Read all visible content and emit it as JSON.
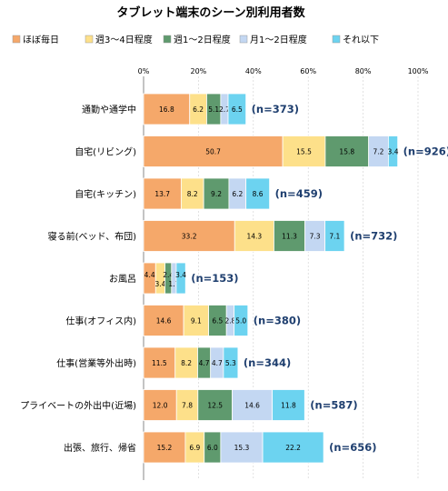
{
  "chart_data": {
    "type": "bar",
    "orientation": "horizontal",
    "stacked": true,
    "title": "タブレット端末のシーン別利用者数",
    "legend_position": "top",
    "series": [
      {
        "name": "ほぼ毎日",
        "color": "#f5a86a"
      },
      {
        "name": "週3～4日程度",
        "color": "#fde08a"
      },
      {
        "name": "週1～2日程度",
        "color": "#5f9a6e"
      },
      {
        "name": "月1～2日程度",
        "color": "#c3d7f2"
      },
      {
        "name": "それ以下",
        "color": "#6cd3f0"
      }
    ],
    "x_ticks": [
      "0%",
      "20%",
      "40%",
      "60%",
      "80%",
      "100%"
    ],
    "xlim": [
      0,
      100
    ],
    "categories": [
      {
        "label": "通勤や通学中",
        "n": "(n=373)",
        "values": [
          16.8,
          6.2,
          5.1,
          2.7,
          6.5
        ],
        "labels": [
          "16.8",
          "6.2",
          "5.1",
          "2.7",
          "6.5"
        ]
      },
      {
        "label": "自宅(リビング)",
        "n": "(n=926)",
        "values": [
          50.7,
          15.5,
          15.8,
          7.2,
          3.4
        ],
        "labels": [
          "50.7",
          "15.5",
          "15.8",
          "7.2",
          "3.4"
        ]
      },
      {
        "label": "自宅(キッチン)",
        "n": "(n=459)",
        "values": [
          13.7,
          8.2,
          9.2,
          6.2,
          8.6
        ],
        "labels": [
          "13.7",
          "8.2",
          "9.2",
          "6.2",
          "8.6"
        ]
      },
      {
        "label": "寝る前(ベッド、布団)",
        "n": "(n=732)",
        "values": [
          33.2,
          14.3,
          11.3,
          7.3,
          7.1
        ],
        "labels": [
          "33.2",
          "14.3",
          "11.3",
          "7.3",
          "7.1"
        ]
      },
      {
        "label": "お風呂",
        "n": "(n=153)",
        "values": [
          4.4,
          3.4,
          2.4,
          1.7,
          3.4
        ],
        "labels": [
          "4.4",
          "3.4",
          "2.4",
          "1.7",
          "3.4"
        ]
      },
      {
        "label": "仕事(オフィス内)",
        "n": "(n=380)",
        "values": [
          14.6,
          9.1,
          6.5,
          2.8,
          5.0
        ],
        "labels": [
          "14.6",
          "9.1",
          "6.5",
          "2.8",
          "5.0"
        ]
      },
      {
        "label": "仕事(営業等外出時)",
        "n": "(n=344)",
        "values": [
          11.5,
          8.2,
          4.7,
          4.7,
          5.3
        ],
        "labels": [
          "11.5",
          "8.2",
          "4.7",
          "4.7",
          "5.3"
        ]
      },
      {
        "label": "プライベートの外出中(近場)",
        "n": "(n=587)",
        "values": [
          12.0,
          7.8,
          12.5,
          14.6,
          11.8
        ],
        "labels": [
          "12.0",
          "7.8",
          "12.5",
          "14.6",
          "11.8"
        ]
      },
      {
        "label": "出張、旅行、帰省",
        "n": "(n=656)",
        "values": [
          15.2,
          6.9,
          6.0,
          15.3,
          22.2
        ],
        "labels": [
          "15.2",
          "6.9",
          "6.0",
          "15.3",
          "22.2"
        ]
      }
    ]
  }
}
